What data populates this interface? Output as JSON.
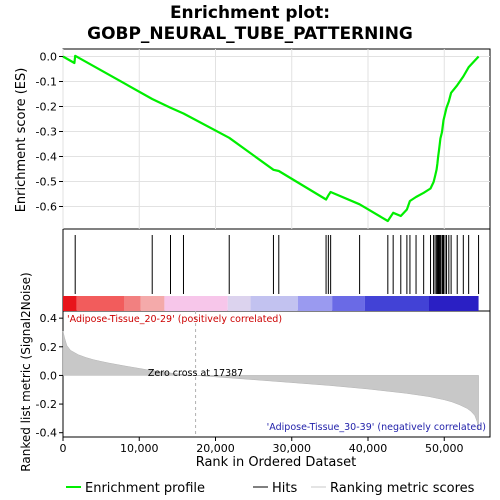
{
  "chart_data": {
    "type": "line",
    "title_line1": "Enrichment plot:",
    "title_line2": "GOBP_NEURAL_TUBE_PATTERNING",
    "xlabel": "Rank in Ordered Dataset",
    "es_panel": {
      "ylabel": "Enrichment score (ES)",
      "ylim": [
        -0.69,
        0.03
      ],
      "yticks": [
        0.0,
        -0.1,
        -0.2,
        -0.3,
        -0.4,
        -0.5,
        -0.6
      ],
      "ytick_labels": [
        "0.0",
        "-0.1",
        "-0.2",
        "-0.3",
        "-0.4",
        "-0.5",
        "-0.6"
      ],
      "grid": true,
      "line_color": "#00ee00",
      "series": [
        {
          "x": [
            0,
            1500,
            1600,
            11700,
            14100,
            15800,
            21800,
            27600,
            28300,
            34500,
            34800,
            35100,
            38900,
            42600,
            43300,
            44300,
            45100,
            45500,
            46300,
            47300,
            48200,
            48600,
            48800,
            49000,
            49100,
            49200,
            49300,
            49400,
            49500,
            49700,
            49800,
            49900,
            50100,
            50300,
            50600,
            50900,
            51700,
            52500,
            53200,
            54500
          ],
          "y": [
            0.0,
            -0.026,
            0.003,
            -0.17,
            -0.205,
            -0.228,
            -0.325,
            -0.453,
            -0.458,
            -0.572,
            -0.555,
            -0.542,
            -0.591,
            -0.658,
            -0.625,
            -0.638,
            -0.612,
            -0.578,
            -0.562,
            -0.545,
            -0.528,
            -0.502,
            -0.478,
            -0.452,
            -0.428,
            -0.402,
            -0.378,
            -0.352,
            -0.328,
            -0.302,
            -0.28,
            -0.255,
            -0.23,
            -0.205,
            -0.18,
            -0.145,
            -0.115,
            -0.08,
            -0.043,
            0.0
          ]
        }
      ]
    },
    "hits": [
      1600,
      11700,
      14100,
      15800,
      21800,
      27600,
      28300,
      34500,
      34800,
      35100,
      38900,
      42600,
      43300,
      44300,
      45100,
      45500,
      46300,
      47300,
      48200,
      48600,
      48800,
      49000,
      49100,
      49200,
      49300,
      49400,
      49500,
      49700,
      49800,
      49900,
      50100,
      50300,
      50600,
      50900,
      51700,
      52500,
      53200,
      54500
    ],
    "ranked_panel": {
      "ylabel": "Ranked list metric (Signal2Noise)",
      "ylim": [
        -0.43,
        0.45
      ],
      "yticks": [
        0.4,
        0.2,
        0.0,
        -0.2,
        -0.4
      ],
      "ytick_labels": [
        "0.4",
        "0.2",
        "0.0",
        "-0.2",
        "-0.4"
      ],
      "zero_cross_rank": 17387,
      "zero_cross_label": "Zero cross at 17387",
      "pos_label": "'Adipose-Tissue_20-29' (positively correlated)",
      "neg_label": "'Adipose-Tissue_30-39' (negatively correlated)",
      "profile": {
        "x": [
          0,
          200,
          500,
          1000,
          2000,
          3000,
          4000,
          5000,
          6000,
          7000,
          8000,
          9000,
          10000,
          11000,
          12000,
          13000,
          14000,
          15000,
          16000,
          17387,
          20000,
          25000,
          30000,
          35000,
          40000,
          45000,
          48000,
          50000,
          51000,
          52000,
          53000,
          53500,
          54000,
          54300,
          54500
        ],
        "y": [
          0.31,
          0.265,
          0.21,
          0.175,
          0.145,
          0.125,
          0.11,
          0.098,
          0.087,
          0.077,
          0.067,
          0.058,
          0.049,
          0.04,
          0.032,
          0.025,
          0.018,
          0.011,
          0.005,
          0.0,
          -0.01,
          -0.03,
          -0.05,
          -0.07,
          -0.095,
          -0.125,
          -0.148,
          -0.17,
          -0.185,
          -0.205,
          -0.23,
          -0.25,
          -0.28,
          -0.32,
          -0.38
        ]
      }
    },
    "xlim": [
      0,
      56000
    ],
    "xticks": [
      0,
      10000,
      20000,
      30000,
      40000,
      50000
    ],
    "xtick_labels": [
      "0",
      "10,000",
      "20,000",
      "30,000",
      "40,000",
      "50,000"
    ],
    "heatmap_colors": [
      "#e8141b",
      "#f25c5c",
      "#f28080",
      "#f4aaaa",
      "#f7c6ea",
      "#dcd3ee",
      "#c2c2f0",
      "#9a9af0",
      "#6a6ae6",
      "#4242d6",
      "#2a1fc4"
    ],
    "heatmap_breaks": [
      0,
      1800,
      8000,
      10200,
      13300,
      21600,
      24600,
      30800,
      35300,
      39600,
      48000,
      54500
    ],
    "legend": [
      {
        "label": "Enrichment profile",
        "color": "#00ee00"
      },
      {
        "label": "Hits",
        "color": "#000000"
      },
      {
        "label": "Ranking metric scores",
        "color": "#c8c8c8"
      }
    ]
  }
}
